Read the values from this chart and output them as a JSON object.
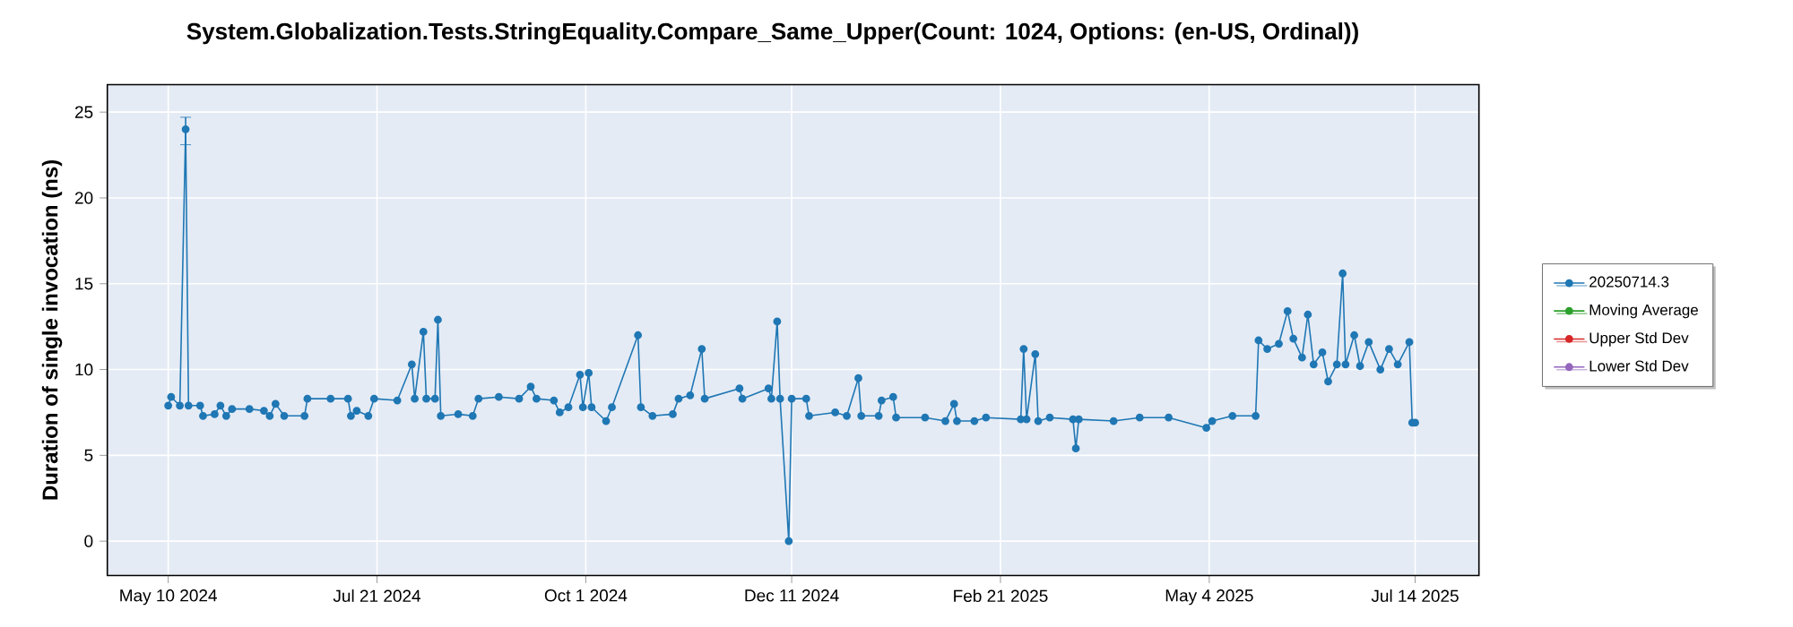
{
  "chart_data": {
    "type": "line",
    "title": "System.Globalization.Tests.StringEquality.Compare_Same_Upper(Count: 1024, Options: (en-US, Ordinal))",
    "ylabel": "Duration of single invocation (ns)",
    "x": [
      "2024-05-10",
      "2024-05-11",
      "2024-05-14",
      "2024-05-16",
      "2024-05-17",
      "2024-05-21",
      "2024-05-22",
      "2024-05-26",
      "2024-05-28",
      "2024-05-30",
      "2024-06-01",
      "2024-06-07",
      "2024-06-12",
      "2024-06-14",
      "2024-06-16",
      "2024-06-19",
      "2024-06-26",
      "2024-06-27",
      "2024-07-05",
      "2024-07-11",
      "2024-07-12",
      "2024-07-14",
      "2024-07-18",
      "2024-07-20",
      "2024-07-28",
      "2024-08-02",
      "2024-08-03",
      "2024-08-06",
      "2024-08-07",
      "2024-08-10",
      "2024-08-11",
      "2024-08-12",
      "2024-08-18",
      "2024-08-23",
      "2024-08-25",
      "2024-09-01",
      "2024-09-08",
      "2024-09-12",
      "2024-09-14",
      "2024-09-20",
      "2024-09-22",
      "2024-09-25",
      "2024-09-29",
      "2024-09-30",
      "2024-10-02",
      "2024-10-03",
      "2024-10-08",
      "2024-10-10",
      "2024-10-19",
      "2024-10-20",
      "2024-10-24",
      "2024-10-31",
      "2024-11-02",
      "2024-11-06",
      "2024-11-10",
      "2024-11-11",
      "2024-11-23",
      "2024-11-24",
      "2024-12-03",
      "2024-12-04",
      "2024-12-06",
      "2024-12-07",
      "2024-12-10",
      "2024-12-11",
      "2024-12-16",
      "2024-12-17",
      "2024-12-26",
      "2024-12-30",
      "2025-01-03",
      "2025-01-04",
      "2025-01-10",
      "2025-01-11",
      "2025-01-15",
      "2025-01-16",
      "2025-01-26",
      "2025-02-02",
      "2025-02-05",
      "2025-02-06",
      "2025-02-12",
      "2025-02-16",
      "2025-02-28",
      "2025-03-01",
      "2025-03-02",
      "2025-03-05",
      "2025-03-06",
      "2025-03-10",
      "2025-03-18",
      "2025-03-19",
      "2025-03-20",
      "2025-04-01",
      "2025-04-10",
      "2025-04-20",
      "2025-05-03",
      "2025-05-05",
      "2025-05-12",
      "2025-05-20",
      "2025-05-21",
      "2025-05-24",
      "2025-05-28",
      "2025-05-31",
      "2025-06-02",
      "2025-06-05",
      "2025-06-07",
      "2025-06-09",
      "2025-06-12",
      "2025-06-14",
      "2025-06-17",
      "2025-06-19",
      "2025-06-20",
      "2025-06-23",
      "2025-06-25",
      "2025-06-28",
      "2025-07-02",
      "2025-07-05",
      "2025-07-08",
      "2025-07-12",
      "2025-07-13",
      "2025-07-14"
    ],
    "series": [
      {
        "name": "20250714.3",
        "color": "#1f77b4",
        "values": [
          7.9,
          8.4,
          7.9,
          24.0,
          7.9,
          7.9,
          7.3,
          7.4,
          7.9,
          7.3,
          7.7,
          7.7,
          7.6,
          7.3,
          8.0,
          7.3,
          7.3,
          8.3,
          8.3,
          8.3,
          7.3,
          7.6,
          7.3,
          8.3,
          8.2,
          10.3,
          8.3,
          12.2,
          8.3,
          8.3,
          12.9,
          7.3,
          7.4,
          7.3,
          8.3,
          8.4,
          8.3,
          9.0,
          8.3,
          8.2,
          7.5,
          7.8,
          9.7,
          7.8,
          9.8,
          7.8,
          7.0,
          7.8,
          12.0,
          7.8,
          7.3,
          7.4,
          8.3,
          8.5,
          11.2,
          8.3,
          8.9,
          8.3,
          8.9,
          8.3,
          12.8,
          8.3,
          0.0,
          8.3,
          8.3,
          7.3,
          7.5,
          7.3,
          9.5,
          7.3,
          7.3,
          8.2,
          8.4,
          7.2,
          7.2,
          7.0,
          8.0,
          7.0,
          7.0,
          7.2,
          7.1,
          11.2,
          7.1,
          10.9,
          7.0,
          7.2,
          7.1,
          5.4,
          7.1,
          7.0,
          7.2,
          7.2,
          6.6,
          7.0,
          7.3,
          7.3,
          11.7,
          11.2,
          11.5,
          13.4,
          11.8,
          10.7,
          13.2,
          10.3,
          11.0,
          9.3,
          10.3,
          15.6,
          10.3,
          12.0,
          10.2,
          11.6,
          10.0,
          11.2,
          10.3,
          11.6,
          6.9,
          6.9
        ],
        "errors": [
          null,
          null,
          null,
          [
            23.1,
            24.7
          ],
          null,
          null,
          null,
          null,
          null,
          null,
          null,
          null,
          null,
          null,
          null,
          null,
          null,
          null,
          null,
          null,
          null,
          null,
          null,
          null,
          null,
          null,
          null,
          null,
          null,
          null,
          null,
          null,
          null,
          null,
          null,
          null,
          null,
          null,
          null,
          null,
          null,
          null,
          null,
          null,
          null,
          null,
          null,
          null,
          null,
          null,
          null,
          null,
          null,
          null,
          null,
          null,
          null,
          null,
          null,
          null,
          null,
          null,
          null,
          null,
          null,
          null,
          null,
          null,
          null,
          null,
          null,
          null,
          null,
          null,
          null,
          null,
          null,
          null,
          null,
          null,
          null,
          null,
          null,
          null,
          null,
          null,
          null,
          null,
          null,
          null,
          null,
          null,
          null,
          null,
          null,
          null,
          null,
          null,
          null,
          null,
          null,
          null,
          null,
          null,
          null,
          null,
          null,
          null,
          null,
          null,
          null,
          null,
          null,
          null,
          null,
          null,
          null,
          null
        ]
      },
      {
        "name": "Moving Average",
        "color": "#2ca02c",
        "values": [
          null,
          null,
          null,
          null,
          null,
          null,
          null,
          null,
          null,
          null,
          null,
          null,
          null,
          null,
          null,
          null,
          null,
          null,
          null,
          null,
          null,
          null,
          null,
          null,
          null,
          null,
          null,
          null,
          null,
          null,
          null,
          null,
          null,
          null,
          null,
          null,
          null,
          null,
          null,
          null,
          null,
          null,
          null,
          null,
          null,
          null,
          null,
          null,
          null,
          null,
          null,
          null,
          null,
          null,
          null,
          null,
          null,
          null,
          null,
          null,
          null,
          null,
          null,
          null,
          null,
          null,
          null,
          null,
          null,
          null,
          null,
          null,
          null,
          null,
          null,
          null,
          null,
          null,
          null,
          null,
          null,
          null,
          null,
          null,
          null,
          null,
          null,
          null,
          null,
          null,
          null,
          null,
          null,
          null,
          null,
          null,
          null,
          null,
          null,
          null,
          null,
          null,
          null,
          null,
          null,
          null,
          null,
          null,
          null,
          null,
          null,
          null,
          null,
          null,
          null,
          null,
          null,
          null
        ]
      },
      {
        "name": "Upper Std Dev",
        "color": "#d62728",
        "values": [
          null,
          null,
          null,
          null,
          null,
          null,
          null,
          null,
          null,
          null,
          null,
          null,
          null,
          null,
          null,
          null,
          null,
          null,
          null,
          null,
          null,
          null,
          null,
          null,
          null,
          null,
          null,
          null,
          null,
          null,
          null,
          null,
          null,
          null,
          null,
          null,
          null,
          null,
          null,
          null,
          null,
          null,
          null,
          null,
          null,
          null,
          null,
          null,
          null,
          null,
          null,
          null,
          null,
          null,
          null,
          null,
          null,
          null,
          null,
          null,
          null,
          null,
          null,
          null,
          null,
          null,
          null,
          null,
          null,
          null,
          null,
          null,
          null,
          null,
          null,
          null,
          null,
          null,
          null,
          null,
          null,
          null,
          null,
          null,
          null,
          null,
          null,
          null,
          null,
          null,
          null,
          null,
          null,
          null,
          null,
          null,
          null,
          null,
          null,
          null,
          null,
          null,
          null,
          null,
          null,
          null,
          null,
          null,
          null,
          null,
          null,
          null,
          null,
          null,
          null,
          null,
          null,
          null
        ]
      },
      {
        "name": "Lower Std Dev",
        "color": "#9467bd",
        "values": [
          null,
          null,
          null,
          null,
          null,
          null,
          null,
          null,
          null,
          null,
          null,
          null,
          null,
          null,
          null,
          null,
          null,
          null,
          null,
          null,
          null,
          null,
          null,
          null,
          null,
          null,
          null,
          null,
          null,
          null,
          null,
          null,
          null,
          null,
          null,
          null,
          null,
          null,
          null,
          null,
          null,
          null,
          null,
          null,
          null,
          null,
          null,
          null,
          null,
          null,
          null,
          null,
          null,
          null,
          null,
          null,
          null,
          null,
          null,
          null,
          null,
          null,
          null,
          null,
          null,
          null,
          null,
          null,
          null,
          null,
          null,
          null,
          null,
          null,
          null,
          null,
          null,
          null,
          null,
          null,
          null,
          null,
          null,
          null,
          null,
          null,
          null,
          null,
          null,
          null,
          null,
          null,
          null,
          null,
          null,
          null,
          null,
          null,
          null,
          null,
          null,
          null,
          null,
          null,
          null,
          null,
          null,
          null,
          null,
          null,
          null,
          null,
          null,
          null,
          null,
          null,
          null,
          null
        ]
      }
    ],
    "xlim": [
      "2024-04-19",
      "2025-08-05"
    ],
    "xticks": [
      {
        "value": "2024-05-10",
        "label": "May 10 2024"
      },
      {
        "value": "2024-07-21",
        "label": "Jul 21 2024"
      },
      {
        "value": "2024-10-01",
        "label": "Oct 1 2024"
      },
      {
        "value": "2024-12-11",
        "label": "Dec 11 2024"
      },
      {
        "value": "2025-02-21",
        "label": "Feb 21 2025"
      },
      {
        "value": "2025-05-04",
        "label": "May 4 2025"
      },
      {
        "value": "2025-07-14",
        "label": "Jul 14 2025"
      }
    ],
    "ylim": [
      -2,
      26.6
    ],
    "yticks": [
      0,
      5,
      10,
      15,
      20,
      25
    ],
    "grid": true,
    "legend": "right",
    "marker": "circle",
    "line_style": "solid"
  }
}
